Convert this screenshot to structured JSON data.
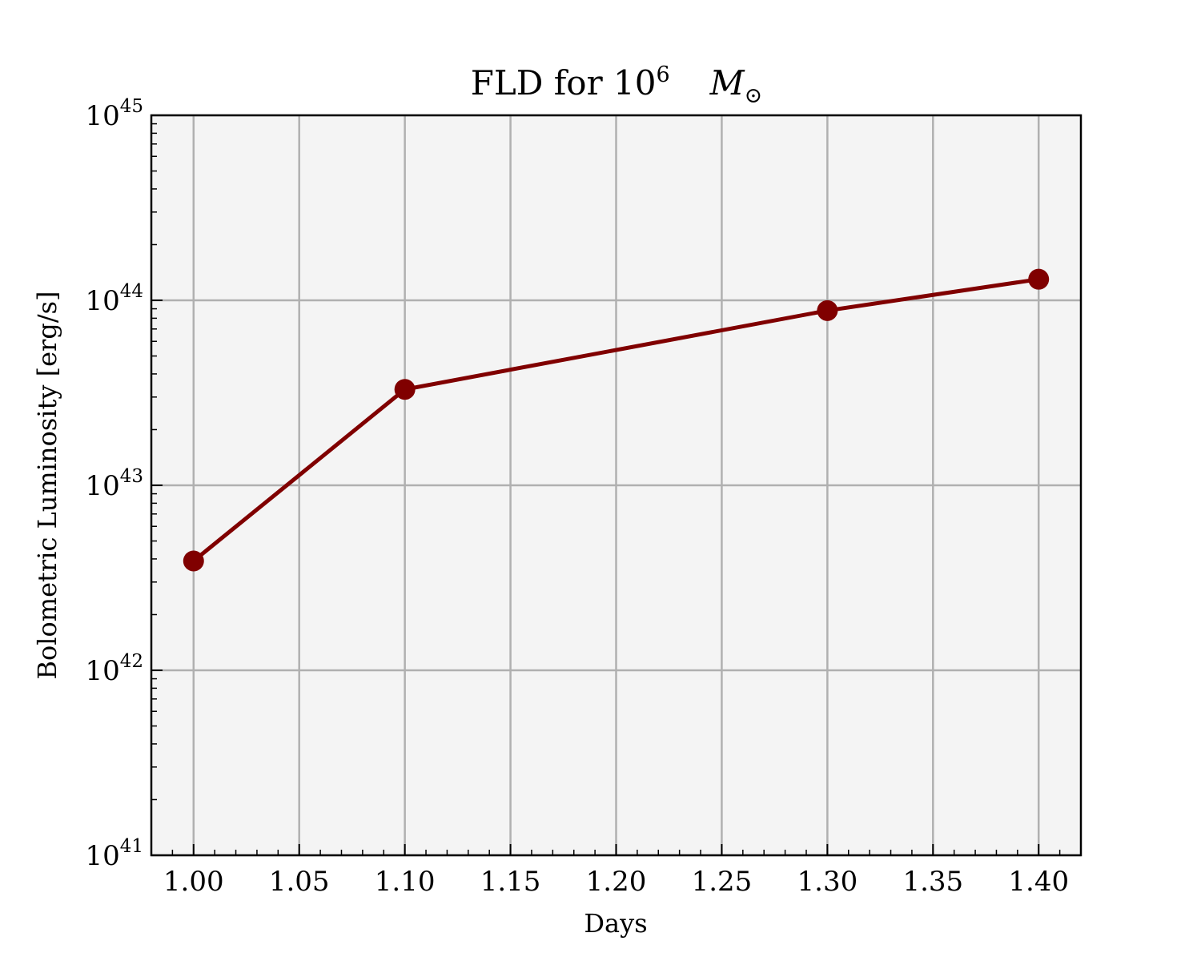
{
  "chart_data": {
    "type": "line",
    "title_prefix": "FLD for 10",
    "title_exponent": "6",
    "title_mass_symbol": "M",
    "title_mass_subscript": "⊙",
    "xlabel": "Days",
    "ylabel": "Bolometric Luminosity [erg/s]",
    "x_scale": "linear",
    "y_scale": "log",
    "xlim": [
      0.98,
      1.42
    ],
    "ylim": [
      1e+41,
      1e+45
    ],
    "grid": true,
    "x_ticks": [
      "1.00",
      "1.05",
      "1.10",
      "1.15",
      "1.20",
      "1.25",
      "1.30",
      "1.35",
      "1.40"
    ],
    "y_tick_base": "10",
    "y_tick_exponents": [
      "41",
      "42",
      "43",
      "44",
      "45"
    ],
    "series": [
      {
        "x": [
          1.0,
          1.1,
          1.3,
          1.4
        ],
        "y": [
          3.9e+42,
          3.3e+43,
          8.8e+43,
          1.3e+44
        ],
        "color": "#800000",
        "marker": "circle"
      }
    ],
    "colors": {
      "plot_background": "#f4f4f4",
      "grid": "#b0b0b0",
      "series": "#800000"
    }
  }
}
